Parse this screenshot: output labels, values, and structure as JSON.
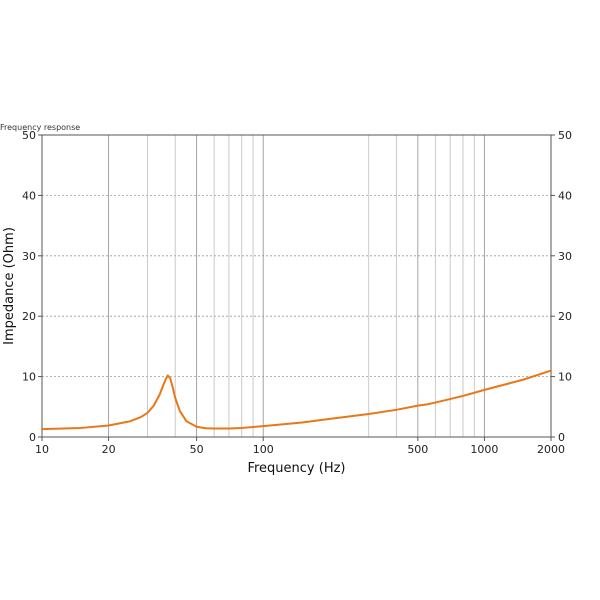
{
  "chart_data": {
    "type": "line",
    "title": "Frequency response",
    "xlabel": "Frequency (Hz)",
    "ylabel": "Impedance (Ohm)",
    "x_scale": "log",
    "xlim": [
      10,
      2000
    ],
    "ylim": [
      0,
      50
    ],
    "x_ticks": [
      10,
      20,
      50,
      100,
      500,
      1000,
      2000
    ],
    "y_ticks": [
      0,
      10,
      20,
      30,
      40,
      50
    ],
    "x_minor_grid": [
      30,
      40,
      60,
      70,
      80,
      90,
      300,
      400,
      600,
      700,
      800,
      900
    ],
    "grid": true,
    "line_color": "#e87817",
    "series": [
      {
        "name": "",
        "x": [
          10,
          15,
          20,
          25,
          28,
          30,
          32,
          34,
          35,
          36,
          37,
          38,
          39,
          40,
          42,
          45,
          50,
          55,
          60,
          70,
          80,
          100,
          150,
          200,
          300,
          400,
          500,
          550,
          600,
          800,
          1000,
          1500,
          2000
        ],
        "y": [
          1.3,
          1.5,
          1.9,
          2.6,
          3.3,
          4.0,
          5.2,
          7.0,
          8.2,
          9.3,
          10.2,
          9.7,
          8.2,
          6.5,
          4.3,
          2.6,
          1.7,
          1.45,
          1.4,
          1.4,
          1.5,
          1.8,
          2.4,
          3.0,
          3.8,
          4.5,
          5.2,
          5.4,
          5.7,
          6.8,
          7.8,
          9.5,
          11.0
        ]
      }
    ]
  }
}
